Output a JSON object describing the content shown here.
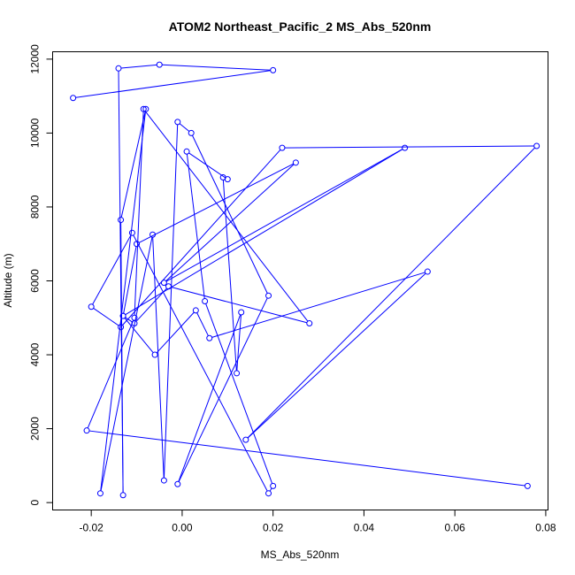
{
  "chart_data": {
    "type": "line",
    "title": "ATOM2 Northeast_Pacific_2 MS_Abs_520nm",
    "xlabel": "MS_Abs_520nm",
    "ylabel": "Altitude (m)",
    "xlim": [
      -0.0285,
      0.0805
    ],
    "ylim": [
      -200,
      12200
    ],
    "x_ticks": [
      -0.02,
      0.0,
      0.02,
      0.04,
      0.06,
      0.08
    ],
    "x_tick_labels": [
      "-0.02",
      "0.00",
      "0.02",
      "0.04",
      "0.06",
      "0.08"
    ],
    "y_ticks": [
      0,
      2000,
      4000,
      6000,
      8000,
      10000,
      12000
    ],
    "y_tick_labels": [
      "0",
      "2000",
      "4000",
      "6000",
      "8000",
      "10000",
      "12000"
    ],
    "grid": false,
    "series_color": "#0000ff",
    "series": [
      {
        "x": [
          -0.024,
          0.02,
          -0.005,
          -0.014,
          -0.013,
          -0.0135,
          -0.008,
          -0.018,
          -0.0065,
          -0.004,
          -0.001,
          0.002,
          0.019,
          -0.001,
          0.013,
          0.012,
          0.009,
          0.01,
          0.001,
          0.005,
          0.02,
          0.019,
          -0.011,
          -0.02,
          -0.0135,
          0.022,
          0.078,
          0.014,
          0.054,
          0.006,
          0.003,
          -0.006,
          -0.013,
          -0.01,
          0.025,
          -0.004,
          0.049,
          -0.013,
          -0.0105,
          -0.003,
          0.028,
          -0.0085,
          -0.0105,
          -0.021,
          0.076
        ],
        "y": [
          10950,
          11700,
          11850,
          11750,
          200,
          7650,
          10650,
          250,
          7250,
          600,
          10300,
          10000,
          5600,
          500,
          5150,
          3500,
          8800,
          8750,
          9500,
          5450,
          450,
          250,
          7300,
          5300,
          4750,
          9600,
          9650,
          1700,
          6250,
          4450,
          5200,
          4000,
          5050,
          7000,
          9200,
          5950,
          9600,
          5050,
          4850,
          5850,
          4850,
          10650,
          5000,
          1950,
          450
        ]
      }
    ]
  }
}
